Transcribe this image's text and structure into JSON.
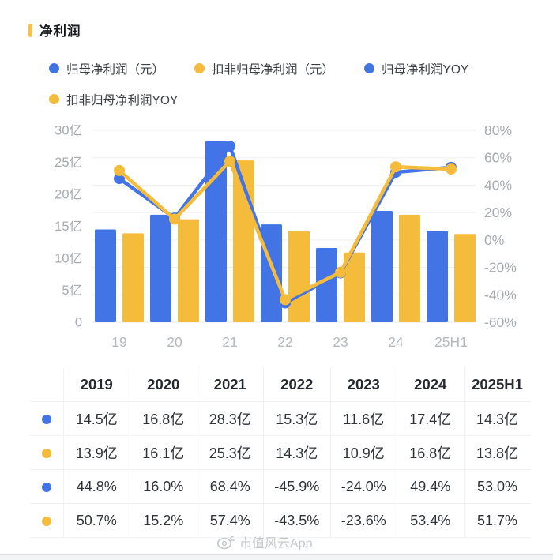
{
  "page": {
    "title": "净利润",
    "watermark": "市值风云App"
  },
  "colors": {
    "blue": "#4274E6",
    "yellow": "#F5BC3B",
    "title_accent": "#F6C146",
    "grid": "#EFEFF1",
    "axis_text": "#A7ABB1",
    "x_axis_text": "#B5B9BE"
  },
  "legend": {
    "items": [
      {
        "label": "归母净利润（元）",
        "color": "#4274E6"
      },
      {
        "label": "扣非归母净利润（元）",
        "color": "#F5BC3B"
      },
      {
        "label": "归母净利润YOY",
        "color": "#4274E6"
      },
      {
        "label": "扣非归母净利润YOY",
        "color": "#F5BC3B"
      }
    ],
    "rows": [
      [
        0,
        1,
        2
      ],
      [
        3
      ]
    ]
  },
  "chart_data": {
    "type": "combo-bar-line",
    "title": "净利润",
    "categories": [
      "19",
      "20",
      "21",
      "22",
      "23",
      "24",
      "25H1"
    ],
    "series": [
      {
        "name": "归母净利润（元）",
        "type": "bar",
        "axis": "left",
        "color": "#4274E6",
        "values": [
          14.5,
          16.8,
          28.3,
          15.3,
          11.6,
          17.4,
          14.3
        ],
        "unit": "亿"
      },
      {
        "name": "扣非归母净利润（元）",
        "type": "bar",
        "axis": "left",
        "color": "#F5BC3B",
        "values": [
          13.9,
          16.1,
          25.3,
          14.3,
          10.9,
          16.8,
          13.8
        ],
        "unit": "亿"
      },
      {
        "name": "归母净利润YOY",
        "type": "line",
        "axis": "right",
        "color": "#4274E6",
        "values": [
          44.8,
          16.0,
          68.4,
          -45.9,
          -24.0,
          49.4,
          53.0
        ],
        "unit": "%"
      },
      {
        "name": "扣非归母净利润YOY",
        "type": "line",
        "axis": "right",
        "color": "#F5BC3B",
        "values": [
          50.7,
          15.2,
          57.4,
          -43.5,
          -23.6,
          53.4,
          51.7
        ],
        "unit": "%"
      }
    ],
    "left_axis": {
      "ticks": [
        "30亿",
        "25亿",
        "20亿",
        "15亿",
        "10亿",
        "5亿",
        "0"
      ],
      "min": 0,
      "max": 30
    },
    "right_axis": {
      "ticks": [
        "80%",
        "60%",
        "40%",
        "20%",
        "0%",
        "-20%",
        "-40%",
        "-60%"
      ],
      "min": -60,
      "max": 80
    },
    "grid": true,
    "legend_position": "top"
  },
  "table": {
    "headers": [
      "",
      "2019",
      "2020",
      "2021",
      "2022",
      "2023",
      "2024",
      "2025H1"
    ],
    "rows": [
      {
        "dot_color": "#4274E6",
        "values": [
          "14.5亿",
          "16.8亿",
          "28.3亿",
          "15.3亿",
          "11.6亿",
          "17.4亿",
          "14.3亿"
        ]
      },
      {
        "dot_color": "#F5BC3B",
        "values": [
          "13.9亿",
          "16.1亿",
          "25.3亿",
          "14.3亿",
          "10.9亿",
          "16.8亿",
          "13.8亿"
        ]
      },
      {
        "dot_color": "#4274E6",
        "values": [
          "44.8%",
          "16.0%",
          "68.4%",
          "-45.9%",
          "-24.0%",
          "49.4%",
          "53.0%"
        ]
      },
      {
        "dot_color": "#F5BC3B",
        "values": [
          "50.7%",
          "15.2%",
          "57.4%",
          "-43.5%",
          "-23.6%",
          "53.4%",
          "51.7%"
        ]
      }
    ]
  }
}
